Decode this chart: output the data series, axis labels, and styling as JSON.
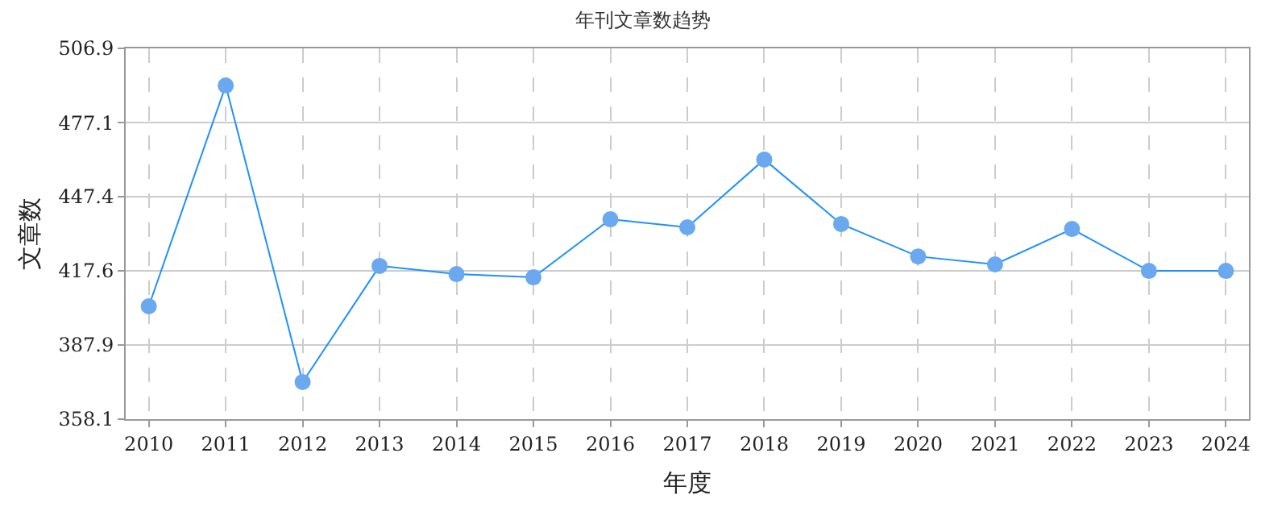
{
  "chart_data": {
    "type": "line",
    "title": "年刊文章数趋势",
    "xlabel": "年度",
    "ylabel": "文章数",
    "categories": [
      "2010",
      "2011",
      "2012",
      "2013",
      "2014",
      "2015",
      "2016",
      "2017",
      "2018",
      "2019",
      "2020",
      "2021",
      "2022",
      "2023",
      "2024"
    ],
    "series": [
      {
        "color": "#1e90ff",
        "values": [
          403.4,
          492.0,
          373.0,
          419.6,
          416.3,
          415.0,
          438.3,
          435.1,
          462.3,
          436.4,
          423.4,
          420.2,
          434.4,
          417.6,
          417.6
        ]
      }
    ],
    "ylim": [
      358.1,
      506.9
    ],
    "yticks": [
      358.1,
      387.9,
      417.6,
      447.4,
      477.1,
      506.9
    ],
    "grid": true,
    "marker": "circle",
    "line_style": "solid",
    "legend": false
  }
}
